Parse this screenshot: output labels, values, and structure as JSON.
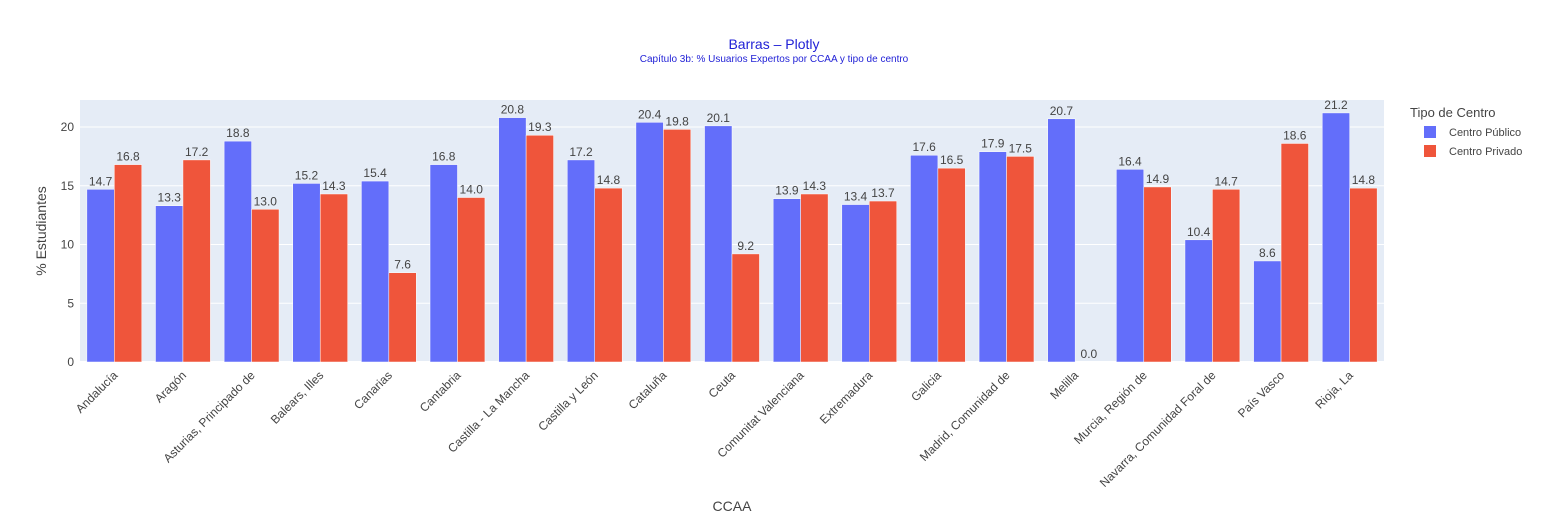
{
  "chart_data": {
    "type": "bar",
    "title": "Barras – Plotly",
    "subtitle": "Capítulo 3b: % Usuarios Expertos por CCAA y tipo de centro",
    "xlabel": "CCAA",
    "ylabel": "% Estudiantes",
    "ylim": [
      0,
      22.3
    ],
    "yticks": [
      0,
      5,
      10,
      15,
      20
    ],
    "grid": true,
    "legend_title": "Tipo de Centro",
    "legend_position": "right",
    "categories": [
      "Andalucía",
      "Aragón",
      "Asturias, Principado de",
      "Balears, Illes",
      "Canarias",
      "Cantabria",
      "Castilla - La Mancha",
      "Castilla y León",
      "Cataluña",
      "Ceuta",
      "Comunitat Valenciana",
      "Extremadura",
      "Galicia",
      "Madrid, Comunidad de",
      "Melilla",
      "Murcia, Región de",
      "Navarra, Comunidad Foral de",
      "País Vasco",
      "Rioja, La"
    ],
    "series": [
      {
        "name": "Centro Público",
        "color": "#636efa",
        "values": [
          14.7,
          13.3,
          18.8,
          15.2,
          15.4,
          16.8,
          20.8,
          17.2,
          20.4,
          20.1,
          13.9,
          13.4,
          17.6,
          17.9,
          20.7,
          16.4,
          10.4,
          8.6,
          21.2
        ]
      },
      {
        "name": "Centro Privado",
        "color": "#ef553b",
        "values": [
          16.8,
          17.2,
          13.0,
          14.3,
          7.6,
          14.0,
          19.3,
          14.8,
          19.8,
          9.2,
          14.3,
          13.7,
          16.5,
          17.5,
          0.0,
          14.9,
          14.7,
          18.6,
          14.8
        ]
      }
    ]
  }
}
